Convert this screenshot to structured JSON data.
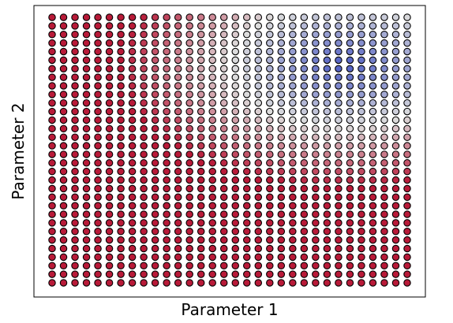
{
  "chart_data": {
    "type": "scatter",
    "title": "",
    "xlabel": "Parameter 1",
    "ylabel": "Parameter 2",
    "x_ticks": [],
    "y_ticks": [],
    "grid": false,
    "legend": null,
    "colormap": "coolwarm",
    "marker": {
      "shape": "circle",
      "edgecolor": "#000000"
    },
    "grid_points": {
      "columns": 32,
      "rows": 32
    },
    "x_index_range": [
      0,
      31
    ],
    "y_index_range": [
      0,
      31
    ],
    "colormap_anchors": {
      "low": "#3b4cc0",
      "mid": "#dddddd",
      "high": "#b40426"
    },
    "color_value_rule": "Color depends on the point's grid position: blue in upper-right region, light near middle band, salmon-red elsewhere; value in [0,1] with 0=blue, 1=red"
  }
}
